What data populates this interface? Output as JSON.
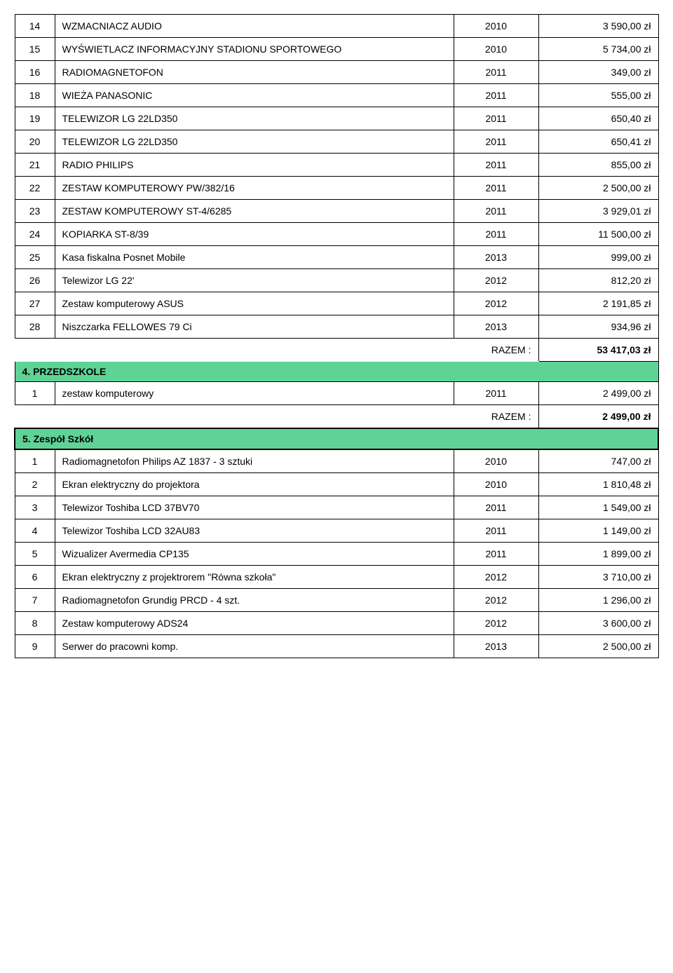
{
  "section_color": "#5fd396",
  "section_border_color": "#000000",
  "rows_top": [
    {
      "n": "14",
      "desc": "WZMACNIACZ AUDIO",
      "year": "2010",
      "val": "3 590,00 zł"
    },
    {
      "n": "15",
      "desc": "WYŚWIETLACZ INFORMACYJNY STADIONU SPORTOWEGO",
      "year": "2010",
      "val": "5 734,00 zł"
    },
    {
      "n": "16",
      "desc": "RADIOMAGNETOFON",
      "year": "2011",
      "val": "349,00 zł"
    },
    {
      "n": "18",
      "desc": "WIEŻA PANASONIC",
      "year": "2011",
      "val": "555,00 zł"
    },
    {
      "n": "19",
      "desc": "TELEWIZOR LG 22LD350",
      "year": "2011",
      "val": "650,40 zł"
    },
    {
      "n": "20",
      "desc": "TELEWIZOR LG  22LD350",
      "year": "2011",
      "val": "650,41 zł"
    },
    {
      "n": "21",
      "desc": "RADIO PHILIPS",
      "year": "2011",
      "val": "855,00 zł"
    },
    {
      "n": "22",
      "desc": "ZESTAW KOMPUTEROWY PW/382/16",
      "year": "2011",
      "val": "2 500,00 zł"
    },
    {
      "n": "23",
      "desc": "ZESTAW KOMPUTEROWY ST-4/6285",
      "year": "2011",
      "val": "3 929,01 zł"
    },
    {
      "n": "24",
      "desc": "KOPIARKA ST-8/39",
      "year": "2011",
      "val": "11 500,00 zł"
    },
    {
      "n": "25",
      "desc": "Kasa fiskalna Posnet Mobile",
      "year": "2013",
      "val": "999,00 zł"
    },
    {
      "n": "26",
      "desc": "Telewizor LG 22'",
      "year": "2012",
      "val": "812,20 zł"
    },
    {
      "n": "27",
      "desc": "Zestaw komputerowy ASUS",
      "year": "2012",
      "val": "2 191,85 zł"
    },
    {
      "n": "28",
      "desc": "Niszczarka FELLOWES 79 Ci",
      "year": "2013",
      "val": "934,96 zł"
    }
  ],
  "razem_top": {
    "label": "RAZEM :",
    "val": "53 417,03 zł"
  },
  "section4": {
    "title": "4. PRZEDSZKOLE"
  },
  "rows_4": [
    {
      "n": "1",
      "desc": "zestaw komputerowy",
      "year": "2011",
      "val": "2 499,00 zł"
    }
  ],
  "razem_4": {
    "label": "RAZEM :",
    "val": "2 499,00 zł"
  },
  "section5": {
    "title": "5. Zespół  Szkół"
  },
  "rows_5": [
    {
      "n": "1",
      "desc": "Radiomagnetofon Philips AZ 1837 - 3 sztuki",
      "year": "2010",
      "val": "747,00 zł"
    },
    {
      "n": "2",
      "desc": "Ekran elektryczny do projektora",
      "year": "2010",
      "val": "1 810,48 zł"
    },
    {
      "n": "3",
      "desc": "Telewizor Toshiba LCD 37BV70",
      "year": "2011",
      "val": "1 549,00 zł"
    },
    {
      "n": "4",
      "desc": "Telewizor Toshiba LCD 32AU83",
      "year": "2011",
      "val": "1 149,00 zł"
    },
    {
      "n": "5",
      "desc": "Wizualizer Avermedia CP135",
      "year": "2011",
      "val": "1 899,00 zł"
    },
    {
      "n": "6",
      "desc": "Ekran elektryczny z projektrorem \"Równa szkoła\"",
      "year": "2012",
      "val": "3 710,00 zł"
    },
    {
      "n": "7",
      "desc": "Radiomagnetofon Grundig PRCD - 4 szt.",
      "year": "2012",
      "val": "1 296,00 zł"
    },
    {
      "n": "8",
      "desc": "Zestaw komputerowy ADS24",
      "year": "2012",
      "val": "3 600,00 zł"
    },
    {
      "n": "9",
      "desc": "Serwer do pracowni komp.",
      "year": "2013",
      "val": "2 500,00 zł"
    }
  ]
}
